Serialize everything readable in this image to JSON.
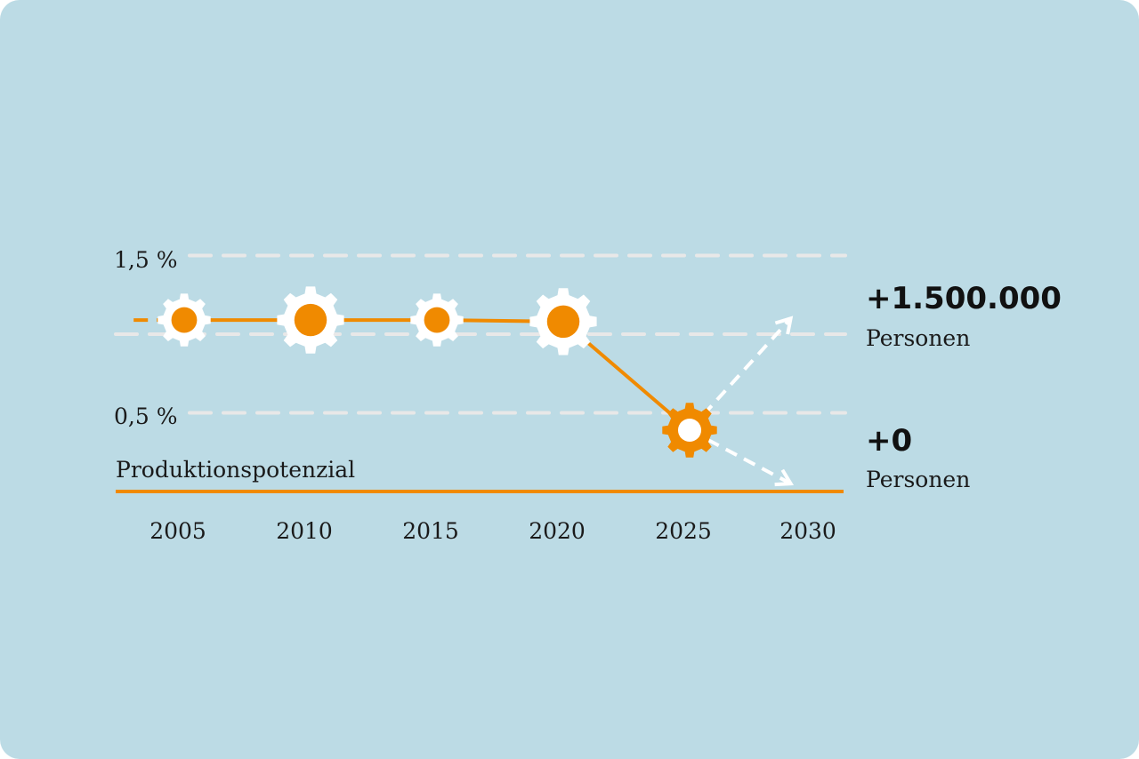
{
  "chart_data": {
    "type": "line",
    "title": "",
    "xlabel": "Produktionspotenzial",
    "ylabel": "",
    "x_ticks": [
      "2005",
      "2010",
      "2015",
      "2020",
      "2025",
      "2030"
    ],
    "y_ticks": [
      "1,5 %",
      "0,5 %"
    ],
    "ylim": [
      0,
      1.5
    ],
    "xlim": [
      2003,
      2031
    ],
    "grid": true,
    "series": [
      {
        "x": [
          2003,
          2005,
          2010,
          2015,
          2020,
          2025
        ],
        "y": [
          1.09,
          1.09,
          1.09,
          1.09,
          1.08,
          0.39
        ]
      }
    ],
    "projections": [
      {
        "from": [
          2025,
          0.39
        ],
        "to": [
          2029,
          1.1
        ],
        "label": "+1.500.000",
        "sublabel": "Personen"
      },
      {
        "from": [
          2025,
          0.39
        ],
        "to": [
          2029,
          0.05
        ],
        "label": "+0",
        "sublabel": "Personen"
      }
    ],
    "colors": {
      "line": "#f08a00",
      "background": "#bcdbe5",
      "grid": "#e8e8e8",
      "arrow": "#ffffff"
    }
  }
}
